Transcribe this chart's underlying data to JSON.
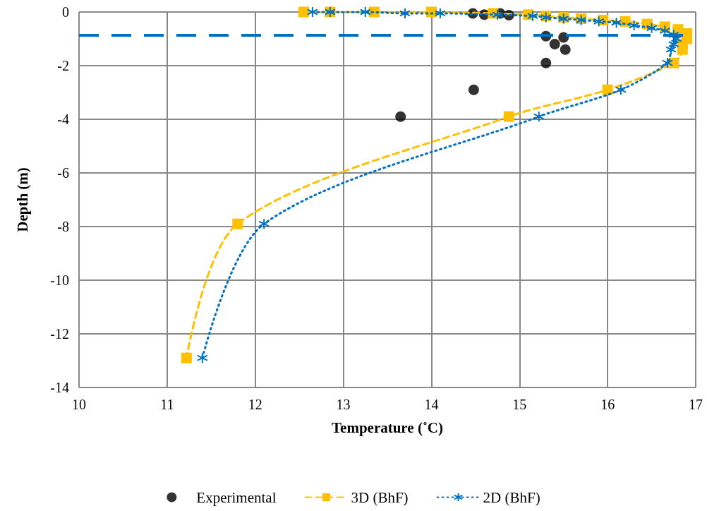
{
  "chart_data": {
    "type": "line",
    "xlabel": "Temperature (˚C)",
    "ylabel": "Depth (m)",
    "xlim": [
      10,
      17
    ],
    "xticks": [
      10,
      11,
      12,
      13,
      14,
      15,
      16,
      17
    ],
    "ylim": [
      -14,
      0
    ],
    "yticks": [
      -14,
      -12,
      -10,
      -8,
      -6,
      -4,
      -2,
      0
    ],
    "grid": true,
    "legend": "bottom",
    "ref_lines": [
      {
        "axis": "y",
        "value": -0.85,
        "color": "#0070c0",
        "line_style": "dashed"
      }
    ],
    "series": [
      {
        "name": "Experimental",
        "type": "scatter",
        "marker": "circle",
        "color": "#000000",
        "x": [
          14.47,
          14.6,
          14.78,
          14.88,
          15.3,
          15.5,
          15.4,
          15.52,
          15.3,
          14.48,
          13.65
        ],
        "values": [
          -0.05,
          -0.1,
          -0.05,
          -0.12,
          -0.9,
          -0.95,
          -1.2,
          -1.4,
          -1.9,
          -2.9,
          -3.9
        ]
      },
      {
        "name": "3D (BhF)",
        "type": "line",
        "marker": "square",
        "line_style": "dashed",
        "color": "#ffc000",
        "x": [
          12.55,
          12.85,
          13.35,
          14.0,
          14.7,
          15.1,
          15.3,
          15.5,
          15.7,
          15.95,
          16.2,
          16.45,
          16.65,
          16.8,
          16.9,
          16.9,
          16.85,
          16.85,
          16.75,
          16.0,
          14.88,
          11.8,
          11.22
        ],
        "values": [
          0,
          0,
          0,
          0,
          -0.05,
          -0.1,
          -0.15,
          -0.2,
          -0.25,
          -0.3,
          -0.35,
          -0.45,
          -0.55,
          -0.65,
          -0.8,
          -1.0,
          -1.2,
          -1.4,
          -1.9,
          -2.9,
          -3.9,
          -7.9,
          -12.9
        ]
      },
      {
        "name": "2D (BhF)",
        "type": "line",
        "marker": "cross",
        "line_style": "dotted",
        "color": "#0070c0",
        "x": [
          12.65,
          12.85,
          13.25,
          13.7,
          14.1,
          14.75,
          15.15,
          15.3,
          15.5,
          15.7,
          15.9,
          16.1,
          16.3,
          16.5,
          16.65,
          16.75,
          16.78,
          16.75,
          16.72,
          16.68,
          16.15,
          15.22,
          12.1,
          11.4
        ],
        "values": [
          0,
          0,
          0,
          -0.05,
          -0.05,
          -0.1,
          -0.15,
          -0.2,
          -0.25,
          -0.3,
          -0.35,
          -0.4,
          -0.5,
          -0.6,
          -0.7,
          -0.85,
          -1.0,
          -1.2,
          -1.4,
          -1.9,
          -2.9,
          -3.9,
          -7.9,
          -12.9
        ]
      }
    ]
  }
}
